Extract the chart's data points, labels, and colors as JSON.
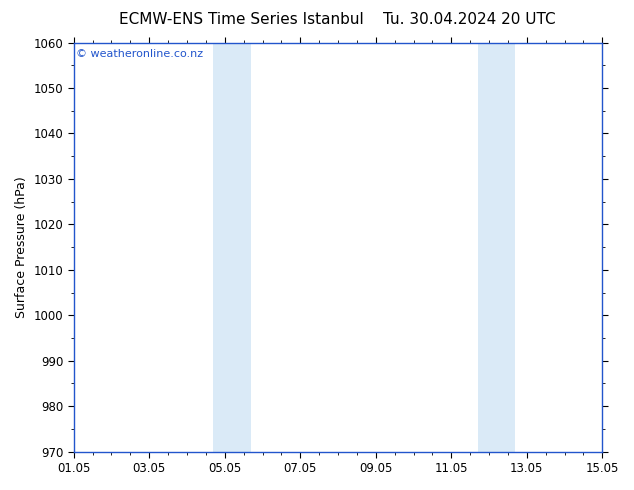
{
  "title": "ECMW-ENS Time Series Istanbul",
  "title_right": "Tu. 30.04.2024 20 UTC",
  "ylabel": "Surface Pressure (hPa)",
  "ylim": [
    970,
    1060
  ],
  "yticks": [
    970,
    980,
    990,
    1000,
    1010,
    1020,
    1030,
    1040,
    1050,
    1060
  ],
  "xlim": [
    0,
    14
  ],
  "xtick_positions": [
    0,
    2,
    4,
    6,
    8,
    10,
    12,
    14
  ],
  "xtick_labels": [
    "01.05",
    "03.05",
    "05.05",
    "07.05",
    "09.05",
    "11.05",
    "13.05",
    "15.05"
  ],
  "shaded_bands": [
    {
      "x_start": 3.7,
      "x_end": 4.7
    },
    {
      "x_start": 10.7,
      "x_end": 11.7
    }
  ],
  "band_color": "#daeaf7",
  "background_color": "#ffffff",
  "watermark": "© weatheronline.co.nz",
  "watermark_color": "#2255cc",
  "title_fontsize": 11,
  "tick_fontsize": 8.5,
  "ylabel_fontsize": 9,
  "spine_color": "#2255cc",
  "title_color": "#000000"
}
